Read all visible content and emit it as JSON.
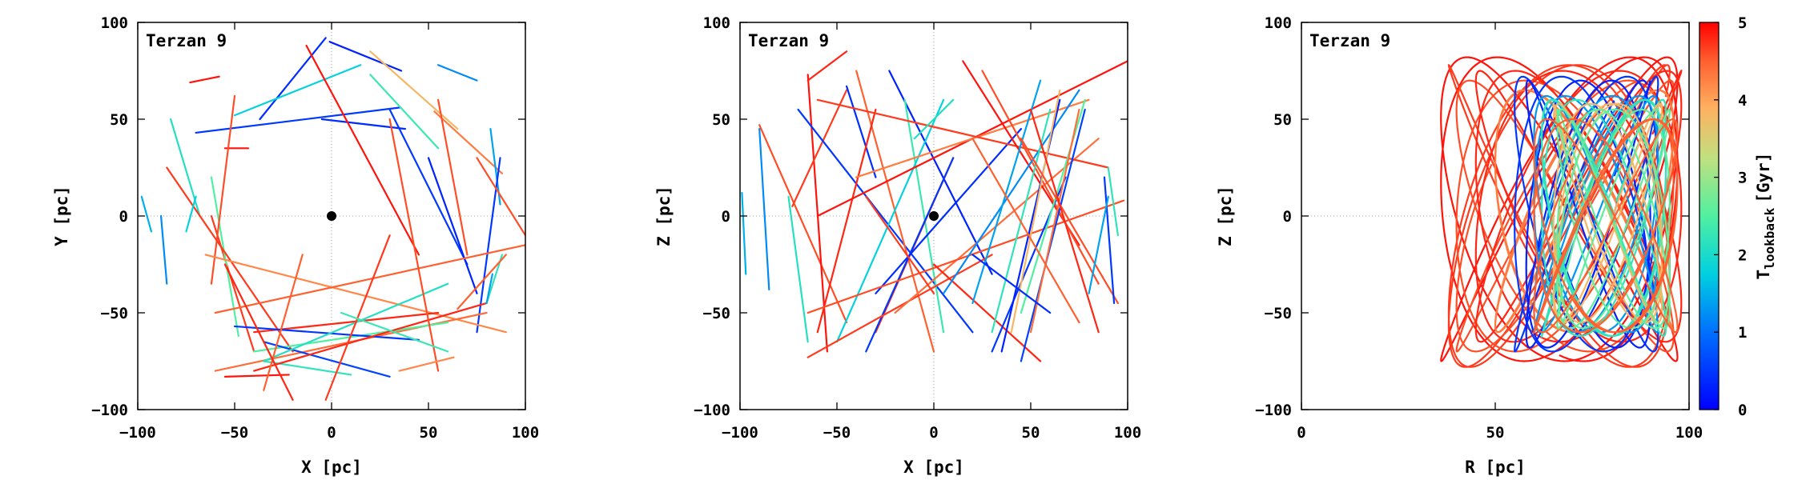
{
  "chart_data": [
    {
      "type": "line",
      "panel": "xy",
      "annotation": "Terzan 9",
      "xlabel": "X [pc]",
      "ylabel": "Y [pc]",
      "xlim": [
        -100,
        100
      ],
      "ylim": [
        -100,
        100
      ],
      "xticks": [
        "−100",
        "−50",
        "0",
        "50",
        "100"
      ],
      "yticks": [
        "−100",
        "−50",
        "0",
        "50",
        "100"
      ],
      "center_marker": [
        0,
        0
      ],
      "grid": "dotted zero lines",
      "series": [
        {
          "t": 0.3,
          "x": [
            -1,
            36
          ],
          "y": [
            90,
            75
          ]
        },
        {
          "t": 0.4,
          "x": [
            -5,
            38
          ],
          "y": [
            50,
            45
          ]
        },
        {
          "t": 0.5,
          "x": [
            -70,
            35
          ],
          "y": [
            43,
            56
          ]
        },
        {
          "t": 0.4,
          "x": [
            -37,
            -3
          ],
          "y": [
            50,
            92
          ]
        },
        {
          "t": 1.8,
          "x": [
            -50,
            15
          ],
          "y": [
            52,
            78
          ]
        },
        {
          "t": 1.2,
          "x": [
            55,
            75
          ],
          "y": [
            78,
            70
          ]
        },
        {
          "t": 2.3,
          "x": [
            20,
            55
          ],
          "y": [
            73,
            35
          ]
        },
        {
          "t": 3.8,
          "x": [
            20,
            65
          ],
          "y": [
            85,
            45
          ]
        },
        {
          "t": 4.3,
          "x": [
            53,
            88
          ],
          "y": [
            54,
            22
          ]
        },
        {
          "t": 1.4,
          "x": [
            82,
            87
          ],
          "y": [
            45,
            6
          ]
        },
        {
          "t": 0.5,
          "x": [
            30,
            70
          ],
          "y": [
            55,
            -25
          ]
        },
        {
          "t": 0.3,
          "x": [
            50,
            75
          ],
          "y": [
            30,
            -40
          ]
        },
        {
          "t": 0.5,
          "x": [
            87,
            75
          ],
          "y": [
            30,
            -60
          ]
        },
        {
          "t": 4.7,
          "x": [
            -62,
            -40
          ],
          "y": [
            0,
            -70
          ]
        },
        {
          "t": 4.9,
          "x": [
            -55,
            -43
          ],
          "y": [
            35,
            35
          ]
        },
        {
          "t": 4.9,
          "x": [
            -73,
            -58
          ],
          "y": [
            69,
            72
          ]
        },
        {
          "t": 1.5,
          "x": [
            -98,
            -93
          ],
          "y": [
            10,
            -8
          ]
        },
        {
          "t": 1.2,
          "x": [
            -88,
            -85
          ],
          "y": [
            0,
            -35
          ]
        },
        {
          "t": 2.1,
          "x": [
            -83,
            -68
          ],
          "y": [
            50,
            0
          ]
        },
        {
          "t": 2.5,
          "x": [
            -62,
            -48
          ],
          "y": [
            20,
            -62
          ]
        },
        {
          "t": 4.6,
          "x": [
            -50,
            -62
          ],
          "y": [
            62,
            -35
          ]
        },
        {
          "t": 4.7,
          "x": [
            -85,
            -20
          ],
          "y": [
            25,
            -70
          ]
        },
        {
          "t": 4.2,
          "x": [
            -65,
            90
          ],
          "y": [
            -20,
            -60
          ]
        },
        {
          "t": 4.5,
          "x": [
            -60,
            100
          ],
          "y": [
            -50,
            -15
          ]
        },
        {
          "t": 4.4,
          "x": [
            -60,
            80
          ],
          "y": [
            -80,
            -50
          ]
        },
        {
          "t": 4.8,
          "x": [
            -40,
            55
          ],
          "y": [
            -60,
            -50
          ]
        },
        {
          "t": 2.5,
          "x": [
            -40,
            60
          ],
          "y": [
            -70,
            -55
          ]
        },
        {
          "t": 0.5,
          "x": [
            -50,
            45
          ],
          "y": [
            -57,
            -64
          ]
        },
        {
          "t": 0.6,
          "x": [
            -35,
            30
          ],
          "y": [
            -65,
            -83
          ]
        },
        {
          "t": 2.2,
          "x": [
            -35,
            10
          ],
          "y": [
            -75,
            -82
          ]
        },
        {
          "t": 2.1,
          "x": [
            -35,
            60
          ],
          "y": [
            -75,
            -35
          ]
        },
        {
          "t": 4.8,
          "x": [
            -40,
            80
          ],
          "y": [
            -80,
            -45
          ]
        },
        {
          "t": 4.9,
          "x": [
            -55,
            -22
          ],
          "y": [
            -83,
            -82
          ]
        },
        {
          "t": 4.5,
          "x": [
            -15,
            -35
          ],
          "y": [
            -20,
            -90
          ]
        },
        {
          "t": 4.8,
          "x": [
            -55,
            -20
          ],
          "y": [
            -25,
            -95
          ]
        },
        {
          "t": 4.7,
          "x": [
            -3,
            30
          ],
          "y": [
            -95,
            -10
          ]
        },
        {
          "t": 4.9,
          "x": [
            -13,
            45
          ],
          "y": [
            88,
            -20
          ]
        },
        {
          "t": 4.6,
          "x": [
            30,
            55
          ],
          "y": [
            50,
            -80
          ]
        },
        {
          "t": 4.6,
          "x": [
            55,
            70
          ],
          "y": [
            60,
            -20
          ]
        },
        {
          "t": 2.3,
          "x": [
            5,
            60
          ],
          "y": [
            -50,
            -70
          ]
        },
        {
          "t": 4.2,
          "x": [
            35,
            63
          ],
          "y": [
            -80,
            -73
          ]
        },
        {
          "t": 2.2,
          "x": [
            88,
            80
          ],
          "y": [
            -20,
            -45
          ]
        },
        {
          "t": 1.4,
          "x": [
            83,
            80
          ],
          "y": [
            -30,
            -45
          ]
        },
        {
          "t": 4.5,
          "x": [
            65,
            90
          ],
          "y": [
            -48,
            -20
          ]
        },
        {
          "t": 4.6,
          "x": [
            75,
            100
          ],
          "y": [
            30,
            -10
          ]
        },
        {
          "t": 1.8,
          "x": [
            -75,
            -70
          ],
          "y": [
            -8,
            10
          ]
        }
      ]
    },
    {
      "type": "line",
      "panel": "xz",
      "annotation": "Terzan 9",
      "xlabel": "X [pc]",
      "ylabel": "Z [pc]",
      "xlim": [
        -100,
        100
      ],
      "ylim": [
        -100,
        100
      ],
      "xticks": [
        "−100",
        "−50",
        "0",
        "50",
        "100"
      ],
      "yticks": [
        "−100",
        "−50",
        "0",
        "50",
        "100"
      ],
      "center_marker": [
        0,
        0
      ],
      "grid": "dotted zero lines",
      "series": [
        {
          "t": 1.5,
          "x": [
            -99,
            -97
          ],
          "y": [
            12,
            -30
          ]
        },
        {
          "t": 1.2,
          "x": [
            -90,
            -85
          ],
          "y": [
            45,
            -38
          ]
        },
        {
          "t": 2.1,
          "x": [
            -75,
            -65
          ],
          "y": [
            10,
            -65
          ]
        },
        {
          "t": 4.6,
          "x": [
            -90,
            -45
          ],
          "y": [
            47,
            -55
          ]
        },
        {
          "t": 4.9,
          "x": [
            -65,
            -55
          ],
          "y": [
            73,
            -70
          ]
        },
        {
          "t": 4.8,
          "x": [
            -65,
            -45
          ],
          "y": [
            70,
            85
          ]
        },
        {
          "t": 4.7,
          "x": [
            -73,
            -45
          ],
          "y": [
            5,
            65
          ]
        },
        {
          "t": 0.5,
          "x": [
            -70,
            20
          ],
          "y": [
            55,
            -60
          ]
        },
        {
          "t": 0.4,
          "x": [
            -45,
            -30
          ],
          "y": [
            67,
            20
          ]
        },
        {
          "t": 4.5,
          "x": [
            -40,
            0
          ],
          "y": [
            75,
            -70
          ]
        },
        {
          "t": 0.3,
          "x": [
            -23,
            30
          ],
          "y": [
            75,
            -30
          ]
        },
        {
          "t": 4.8,
          "x": [
            -30,
            -60
          ],
          "y": [
            55,
            -60
          ]
        },
        {
          "t": 2.3,
          "x": [
            -15,
            5
          ],
          "y": [
            60,
            -60
          ]
        },
        {
          "t": 1.8,
          "x": [
            -50,
            5
          ],
          "y": [
            -65,
            60
          ]
        },
        {
          "t": 4.8,
          "x": [
            -30,
            10
          ],
          "y": [
            -60,
            30
          ]
        },
        {
          "t": 0.5,
          "x": [
            -35,
            10
          ],
          "y": [
            -70,
            30
          ]
        },
        {
          "t": 4.9,
          "x": [
            -60,
            100
          ],
          "y": [
            0,
            80
          ]
        },
        {
          "t": 4.3,
          "x": [
            -40,
            80
          ],
          "y": [
            20,
            60
          ]
        },
        {
          "t": 4.7,
          "x": [
            -65,
            30
          ],
          "y": [
            -73,
            -20
          ]
        },
        {
          "t": 4.4,
          "x": [
            -20,
            85
          ],
          "y": [
            -50,
            40
          ]
        },
        {
          "t": 0.4,
          "x": [
            -30,
            45
          ],
          "y": [
            -40,
            45
          ]
        },
        {
          "t": 4.6,
          "x": [
            -65,
            98
          ],
          "y": [
            -50,
            8
          ]
        },
        {
          "t": 4.7,
          "x": [
            -60,
            90
          ],
          "y": [
            60,
            25
          ]
        },
        {
          "t": 4.9,
          "x": [
            15,
            75
          ],
          "y": [
            80,
            -15
          ]
        },
        {
          "t": 4.6,
          "x": [
            25,
            85
          ],
          "y": [
            75,
            -35
          ]
        },
        {
          "t": 4.8,
          "x": [
            0,
            55
          ],
          "y": [
            -25,
            -75
          ]
        },
        {
          "t": 1.2,
          "x": [
            5,
            75
          ],
          "y": [
            -40,
            65
          ]
        },
        {
          "t": 0.5,
          "x": [
            30,
            68
          ],
          "y": [
            -70,
            20
          ]
        },
        {
          "t": 0.3,
          "x": [
            35,
            65
          ],
          "y": [
            -70,
            60
          ]
        },
        {
          "t": 0.6,
          "x": [
            45,
            78
          ],
          "y": [
            -75,
            55
          ]
        },
        {
          "t": 1.4,
          "x": [
            20,
            55
          ],
          "y": [
            -45,
            70
          ]
        },
        {
          "t": 2.5,
          "x": [
            45,
            78
          ],
          "y": [
            -50,
            60
          ]
        },
        {
          "t": 3.8,
          "x": [
            40,
            65
          ],
          "y": [
            -60,
            65
          ]
        },
        {
          "t": 2.2,
          "x": [
            30,
            60
          ],
          "y": [
            -60,
            55
          ]
        },
        {
          "t": 4.4,
          "x": [
            50,
            75
          ],
          "y": [
            -60,
            55
          ]
        },
        {
          "t": 4.6,
          "x": [
            45,
            95
          ],
          "y": [
            40,
            -45
          ]
        },
        {
          "t": 4.8,
          "x": [
            50,
            85
          ],
          "y": [
            55,
            -60
          ]
        },
        {
          "t": 0.5,
          "x": [
            88,
            93
          ],
          "y": [
            20,
            -45
          ]
        },
        {
          "t": 2.2,
          "x": [
            90,
            95
          ],
          "y": [
            25,
            -10
          ]
        },
        {
          "t": 1.4,
          "x": [
            80,
            90
          ],
          "y": [
            -40,
            10
          ]
        },
        {
          "t": 0.4,
          "x": [
            20,
            60
          ],
          "y": [
            -20,
            -50
          ]
        },
        {
          "t": 4.5,
          "x": [
            20,
            75
          ],
          "y": [
            40,
            -55
          ]
        },
        {
          "t": 2.1,
          "x": [
            -10,
            10
          ],
          "y": [
            40,
            60
          ]
        },
        {
          "t": 4.7,
          "x": [
            -35,
            0
          ],
          "y": [
            10,
            -40
          ]
        }
      ]
    },
    {
      "type": "line",
      "panel": "rz",
      "annotation": "Terzan 9",
      "xlabel": "R [pc]",
      "ylabel": "Z [pc]",
      "xlim": [
        0,
        100
      ],
      "ylim": [
        -100,
        100
      ],
      "xticks": [
        "0",
        "50",
        "100"
      ],
      "yticks": [
        "−100",
        "−50",
        "0",
        "50",
        "100"
      ],
      "grid": "dotted zero line",
      "colorbar": {
        "label_main": "T",
        "label_sub": "lookback",
        "label_unit": "[Gyr]",
        "range": [
          0,
          5
        ],
        "ticks": [
          "0",
          "1",
          "2",
          "3",
          "4",
          "5"
        ]
      },
      "orbit_families": [
        {
          "t": 4.9,
          "rmin": 36,
          "rmax": 97,
          "zmin": -75,
          "zmax": 82,
          "turns": 3.5,
          "phase": 0.0
        },
        {
          "t": 4.7,
          "rmin": 38,
          "rmax": 95,
          "zmin": -78,
          "zmax": 78,
          "turns": 3.0,
          "phase": 1.3
        },
        {
          "t": 4.6,
          "rmin": 40,
          "rmax": 96,
          "zmin": -70,
          "zmax": 70,
          "turns": 3.5,
          "phase": 2.4
        },
        {
          "t": 4.8,
          "rmin": 45,
          "rmax": 98,
          "zmin": -65,
          "zmax": 75,
          "turns": 4.0,
          "phase": 0.8
        },
        {
          "t": 4.3,
          "rmin": 50,
          "rmax": 96,
          "zmin": -60,
          "zmax": 65,
          "turns": 3.5,
          "phase": 3.1
        },
        {
          "t": 0.5,
          "rmin": 55,
          "rmax": 92,
          "zmin": -70,
          "zmax": 72,
          "turns": 3.0,
          "phase": 0.4
        },
        {
          "t": 0.3,
          "rmin": 58,
          "rmax": 90,
          "zmin": -68,
          "zmax": 70,
          "turns": 3.5,
          "phase": 1.9
        },
        {
          "t": 1.3,
          "rmin": 60,
          "rmax": 92,
          "zmin": -60,
          "zmax": 62,
          "turns": 4.0,
          "phase": 2.7
        },
        {
          "t": 2.2,
          "rmin": 62,
          "rmax": 94,
          "zmin": -62,
          "zmax": 60,
          "turns": 4.0,
          "phase": 0.2
        },
        {
          "t": 3.8,
          "rmin": 65,
          "rmax": 93,
          "zmin": -55,
          "zmax": 58,
          "turns": 4.5,
          "phase": 1.5
        },
        {
          "t": 2.6,
          "rmin": 66,
          "rmax": 95,
          "zmin": -58,
          "zmax": 55,
          "turns": 4.5,
          "phase": 2.2
        },
        {
          "t": 4.5,
          "rmin": 60,
          "rmax": 97,
          "zmin": -60,
          "zmax": 50,
          "turns": 4.0,
          "phase": 3.6
        }
      ]
    }
  ]
}
